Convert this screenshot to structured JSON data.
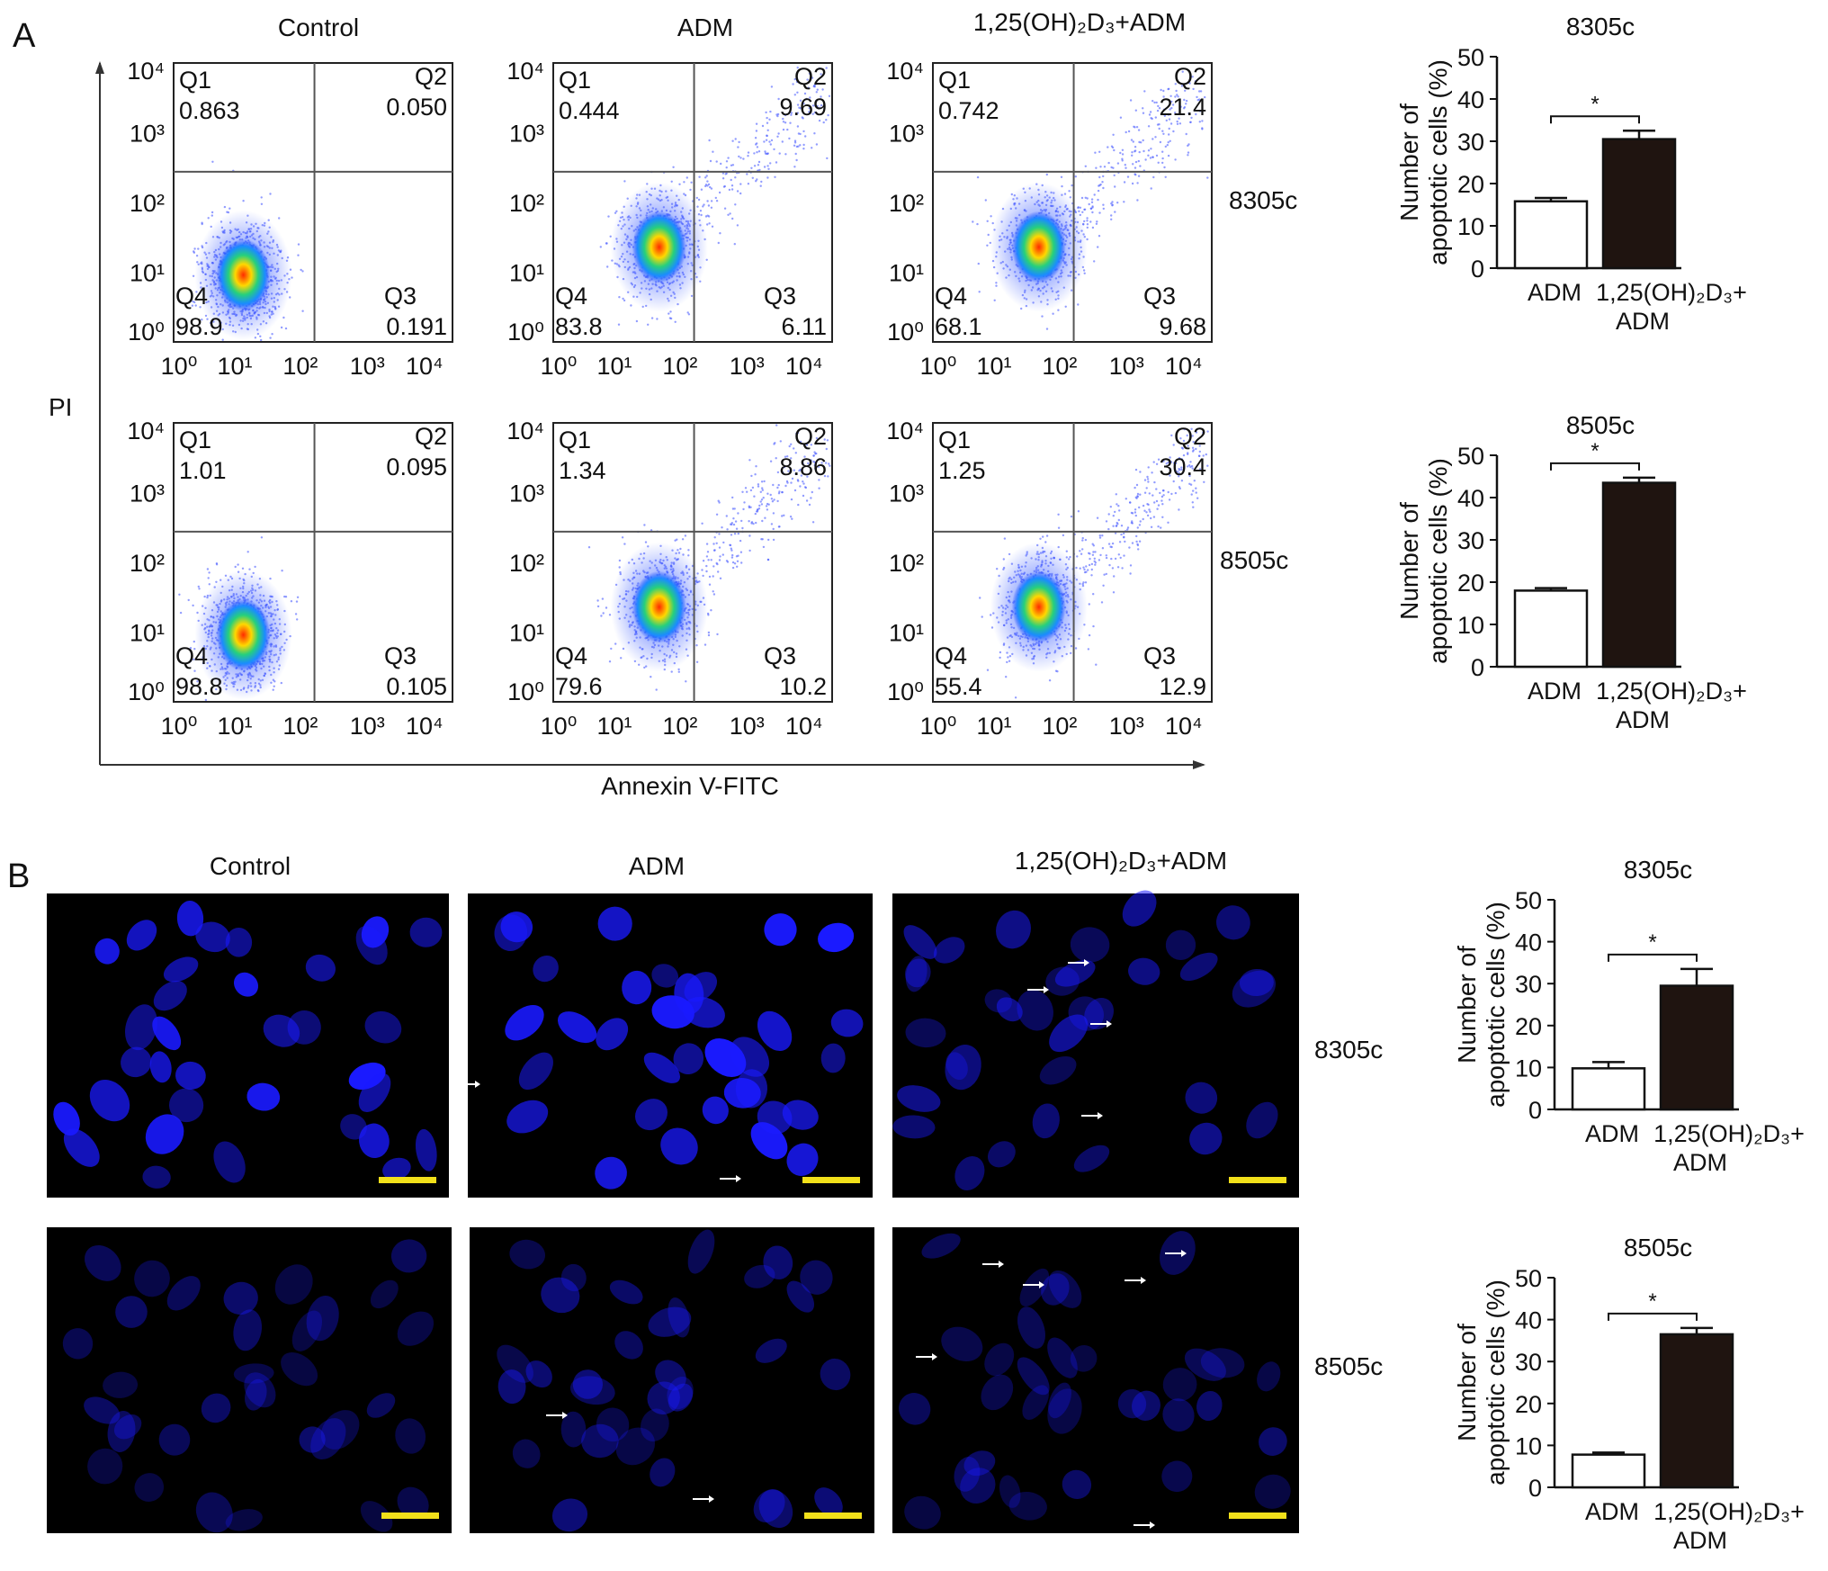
{
  "panel_a": {
    "letter": "A",
    "column_titles": [
      "Control",
      "ADM",
      "1,25(OH)₂D₃+ADM"
    ],
    "row_labels": [
      "8305c",
      "8505c"
    ],
    "y_axis_label": "PI",
    "x_axis_label": "Annexin V-FITC",
    "tick_labels": [
      "10⁰",
      "10¹",
      "10²",
      "10³",
      "10⁴"
    ],
    "quadrant_names": [
      "Q1",
      "Q2",
      "Q3",
      "Q4"
    ],
    "plots": [
      {
        "cell": "8305c",
        "group": "Control",
        "q1": "0.863",
        "q2": "0.050",
        "q3": "0.191",
        "q4": "98.9"
      },
      {
        "cell": "8305c",
        "group": "ADM",
        "q1": "0.444",
        "q2": "9.69",
        "q3": "6.11",
        "q4": "83.8"
      },
      {
        "cell": "8305c",
        "group": "1,25(OH)₂D₃+ADM",
        "q1": "0.742",
        "q2": "21.4",
        "q3": "9.68",
        "q4": "68.1"
      },
      {
        "cell": "8505c",
        "group": "Control",
        "q1": "1.01",
        "q2": "0.095",
        "q3": "0.105",
        "q4": "98.8"
      },
      {
        "cell": "8505c",
        "group": "ADM",
        "q1": "1.34",
        "q2": "8.86",
        "q3": "10.2",
        "q4": "79.6"
      },
      {
        "cell": "8505c",
        "group": "1,25(OH)₂D₃+ADM",
        "q1": "1.25",
        "q2": "30.4",
        "q3": "12.9",
        "q4": "55.4"
      }
    ]
  },
  "panel_b": {
    "letter": "B",
    "column_titles": [
      "Control",
      "ADM",
      "1,25(OH)₂D₃+ADM"
    ],
    "row_labels": [
      "8305c",
      "8505c"
    ]
  },
  "colors": {
    "nucleus": "#1a1aff",
    "scale_bar": "#f2e01a",
    "bar_adm": "#ffffff",
    "bar_combo": "#1f1410"
  },
  "chart_data": [
    {
      "type": "bar",
      "panel": "A",
      "title": "8305c",
      "categories": [
        "ADM",
        "1,25(OH)₂D₃+ ADM"
      ],
      "values": [
        15.8,
        30.5
      ],
      "errors": [
        0.8,
        2.0
      ],
      "ylabel_line1": "Number of",
      "ylabel_line2": "apoptotic cells (%)",
      "ylim": [
        0,
        50
      ],
      "yticks": [
        "0",
        "10",
        "20",
        "30",
        "40",
        "50"
      ],
      "significance": "*"
    },
    {
      "type": "bar",
      "panel": "A",
      "title": "8505c",
      "categories": [
        "ADM",
        "1,25(OH)₂D₃+ ADM"
      ],
      "values": [
        18.0,
        43.5
      ],
      "errors": [
        0.6,
        1.2
      ],
      "ylabel_line1": "Number of",
      "ylabel_line2": "apoptotic cells (%)",
      "ylim": [
        0,
        50
      ],
      "yticks": [
        "0",
        "10",
        "20",
        "30",
        "40",
        "50"
      ],
      "significance": "*"
    },
    {
      "type": "bar",
      "panel": "B",
      "title": "8305c",
      "categories": [
        "ADM",
        "1,25(OH)₂D₃+ ADM"
      ],
      "values": [
        9.8,
        29.5
      ],
      "errors": [
        1.5,
        4.0
      ],
      "ylabel_line1": "Number of",
      "ylabel_line2": "apoptotic cells (%)",
      "ylim": [
        0,
        50
      ],
      "yticks": [
        "0",
        "10",
        "20",
        "30",
        "40",
        "50"
      ],
      "significance": "*"
    },
    {
      "type": "bar",
      "panel": "B",
      "title": "8505c",
      "categories": [
        "ADM",
        "1,25(OH)₂D₃+ ADM"
      ],
      "values": [
        7.8,
        36.5
      ],
      "errors": [
        0.5,
        1.5
      ],
      "ylabel_line1": "Number of",
      "ylabel_line2": "apoptotic cells (%)",
      "ylim": [
        0,
        50
      ],
      "yticks": [
        "0",
        "10",
        "20",
        "30",
        "40",
        "50"
      ],
      "significance": "*"
    }
  ]
}
